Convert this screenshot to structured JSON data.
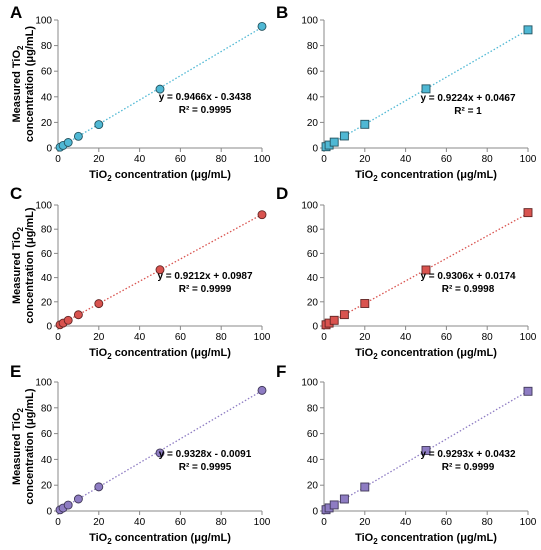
{
  "chart_data": [
    {
      "panel": "A",
      "type": "scatter",
      "marker": "circle",
      "color": "#4fb8d4",
      "xlabel_main": "TiO",
      "xlabel_sub": "2",
      "xlabel_rest": " concentration (μg/mL)",
      "ylabel_line1_main": "Measured TiO",
      "ylabel_line1_sub": "2",
      "ylabel_line2": "concentration (μg/mL)",
      "xlim": [
        0,
        100
      ],
      "ylim": [
        0,
        100
      ],
      "xticks": [
        "0",
        "20",
        "40",
        "60",
        "80",
        "100"
      ],
      "yticks": [
        "0",
        "20",
        "40",
        "60",
        "80",
        "100"
      ],
      "series": [
        {
          "x": [
            1,
            2.5,
            5,
            10,
            20,
            50,
            100
          ],
          "y": [
            0.6,
            2,
            4.3,
            9.1,
            18.3,
            46,
            95
          ]
        }
      ],
      "trendline": {
        "slope": 0.9466,
        "intercept": -0.3438
      },
      "equation": "y = 0.9466x - 0.3438",
      "r2": "R² = 0.9995"
    },
    {
      "panel": "B",
      "type": "scatter",
      "marker": "square",
      "color": "#4fb8d4",
      "xlabel_main": "TiO",
      "xlabel_sub": "2",
      "xlabel_rest": " concentration (μg/mL)",
      "ylabel_line1_main": "",
      "ylabel_line1_sub": "",
      "ylabel_line2": "",
      "xlim": [
        0,
        100
      ],
      "ylim": [
        0,
        100
      ],
      "xticks": [
        "0",
        "20",
        "40",
        "60",
        "80",
        "100"
      ],
      "yticks": [
        "0",
        "20",
        "40",
        "60",
        "80",
        "100"
      ],
      "series": [
        {
          "x": [
            1,
            2.5,
            5,
            10,
            20,
            50,
            100
          ],
          "y": [
            1,
            2.3,
            4.6,
            9.4,
            18.5,
            46.2,
            92.3
          ]
        }
      ],
      "trendline": {
        "slope": 0.9224,
        "intercept": 0.0467
      },
      "equation": "y = 0.9224x + 0.0467",
      "r2": "R² = 1"
    },
    {
      "panel": "C",
      "type": "scatter",
      "marker": "circle",
      "color": "#d9534f",
      "xlabel_main": "TiO",
      "xlabel_sub": "2",
      "xlabel_rest": " concentration (μg/mL)",
      "ylabel_line1_main": "Measured TiO",
      "ylabel_line1_sub": "2",
      "ylabel_line2": "concentration (μg/mL)",
      "xlim": [
        0,
        100
      ],
      "ylim": [
        0,
        100
      ],
      "xticks": [
        "0",
        "20",
        "40",
        "60",
        "80",
        "100"
      ],
      "yticks": [
        "0",
        "20",
        "40",
        "60",
        "80",
        "100"
      ],
      "series": [
        {
          "x": [
            1,
            2.5,
            5,
            10,
            20,
            50,
            100
          ],
          "y": [
            1,
            2.4,
            4.7,
            9.3,
            18.5,
            46.5,
            92
          ]
        }
      ],
      "trendline": {
        "slope": 0.9212,
        "intercept": 0.0987
      },
      "equation": "y = 0.9212x + 0.0987",
      "r2": "R² = 0.9999"
    },
    {
      "panel": "D",
      "type": "scatter",
      "marker": "square",
      "color": "#d9534f",
      "xlabel_main": "TiO",
      "xlabel_sub": "2",
      "xlabel_rest": " concentration (μg/mL)",
      "ylabel_line1_main": "",
      "ylabel_line1_sub": "",
      "ylabel_line2": "",
      "xlim": [
        0,
        100
      ],
      "ylim": [
        0,
        100
      ],
      "xticks": [
        "0",
        "20",
        "40",
        "60",
        "80",
        "100"
      ],
      "yticks": [
        "0",
        "20",
        "40",
        "60",
        "80",
        "100"
      ],
      "series": [
        {
          "x": [
            1,
            2.5,
            5,
            10,
            20,
            50,
            100
          ],
          "y": [
            1,
            2.4,
            4.7,
            9.4,
            18.6,
            46.3,
            93.7
          ]
        }
      ],
      "trendline": {
        "slope": 0.9306,
        "intercept": 0.0174
      },
      "equation": "y = 0.9306x + 0.0174",
      "r2": "R² = 0.9998"
    },
    {
      "panel": "E",
      "type": "scatter",
      "marker": "circle",
      "color": "#8e7cc3",
      "xlabel_main": "TiO",
      "xlabel_sub": "2",
      "xlabel_rest": " concentration (μg/mL)",
      "ylabel_line1_main": "Measured TiO",
      "ylabel_line1_sub": "2",
      "ylabel_line2": "concentration (μg/mL)",
      "xlim": [
        0,
        100
      ],
      "ylim": [
        0,
        100
      ],
      "xticks": [
        "0",
        "20",
        "40",
        "60",
        "80",
        "100"
      ],
      "yticks": [
        "0",
        "20",
        "40",
        "60",
        "80",
        "100"
      ],
      "series": [
        {
          "x": [
            1,
            2.5,
            5,
            10,
            20,
            50,
            100
          ],
          "y": [
            0.9,
            2.3,
            4.6,
            9.3,
            18.7,
            45,
            93.5
          ]
        }
      ],
      "trendline": {
        "slope": 0.9328,
        "intercept": -0.0091
      },
      "equation": "y = 0.9328x - 0.0091",
      "r2": "R² = 0.9995"
    },
    {
      "panel": "F",
      "type": "scatter",
      "marker": "square",
      "color": "#8e7cc3",
      "xlabel_main": "TiO",
      "xlabel_sub": "2",
      "xlabel_rest": " concentration (μg/mL)",
      "ylabel_line1_main": "",
      "ylabel_line1_sub": "",
      "ylabel_line2": "",
      "xlim": [
        0,
        100
      ],
      "ylim": [
        0,
        100
      ],
      "xticks": [
        "0",
        "20",
        "40",
        "60",
        "80",
        "100"
      ],
      "yticks": [
        "0",
        "20",
        "40",
        "60",
        "80",
        "100"
      ],
      "series": [
        {
          "x": [
            1,
            2.5,
            5,
            10,
            20,
            50,
            100
          ],
          "y": [
            1,
            2.4,
            4.7,
            9.3,
            18.6,
            46.9,
            92.8
          ]
        }
      ],
      "trendline": {
        "slope": 0.9293,
        "intercept": 0.0432
      },
      "equation": "y = 0.9293x + 0.0432",
      "r2": "R² = 0.9999"
    }
  ]
}
